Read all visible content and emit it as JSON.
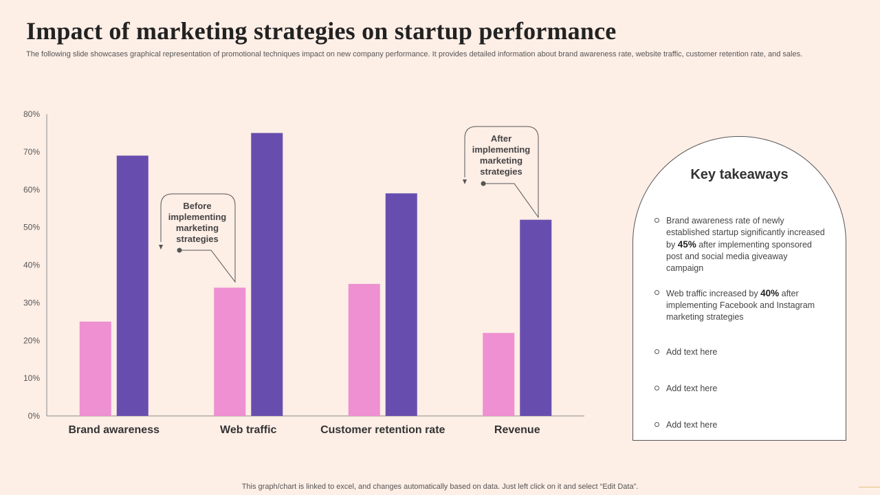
{
  "title": "Impact of marketing strategies on startup performance",
  "subtitle": "The following slide showcases graphical representation of promotional techniques impact on new company performance. It provides detailed information about brand awareness rate, website traffic, customer retention rate, and sales.",
  "chart_data": {
    "type": "bar",
    "categories": [
      "Brand awareness",
      "Web traffic",
      "Customer retention rate",
      "Revenue"
    ],
    "series": [
      {
        "name": "Before implementing marketing strategies",
        "values": [
          25,
          34,
          35,
          22
        ],
        "color": "#ee90d2"
      },
      {
        "name": "After implementing marketing strategies",
        "values": [
          69,
          75,
          59,
          52
        ],
        "color": "#674eae"
      }
    ],
    "ylim": [
      0,
      80
    ],
    "yticks": [
      "0%",
      "10%",
      "20%",
      "30%",
      "40%",
      "50%",
      "60%",
      "70%",
      "80%"
    ],
    "ytick_values": [
      0,
      10,
      20,
      30,
      40,
      50,
      60,
      70,
      80
    ],
    "annotations": [
      {
        "lines": [
          "Before",
          "implementing",
          "marketing",
          "strategies"
        ]
      },
      {
        "lines": [
          "After",
          "implementing",
          "marketing",
          "strategies"
        ]
      }
    ]
  },
  "takeaways": {
    "title": "Key takeaways",
    "items": [
      {
        "pre": "Brand awareness rate of newly established startup significantly increased by ",
        "bold": "45%",
        "post": " after implementing sponsored post and social media giveaway campaign"
      },
      {
        "pre": "Web traffic increased by ",
        "bold": "40%",
        "post": " after implementing Facebook and Instagram marketing strategies"
      },
      {
        "pre": "Add text here",
        "bold": "",
        "post": ""
      },
      {
        "pre": "Add text here",
        "bold": "",
        "post": ""
      },
      {
        "pre": "Add text here",
        "bold": "",
        "post": ""
      }
    ]
  },
  "footer": "This graph/chart is linked to excel, and changes automatically based on data. Just left click on it and select “Edit Data”."
}
